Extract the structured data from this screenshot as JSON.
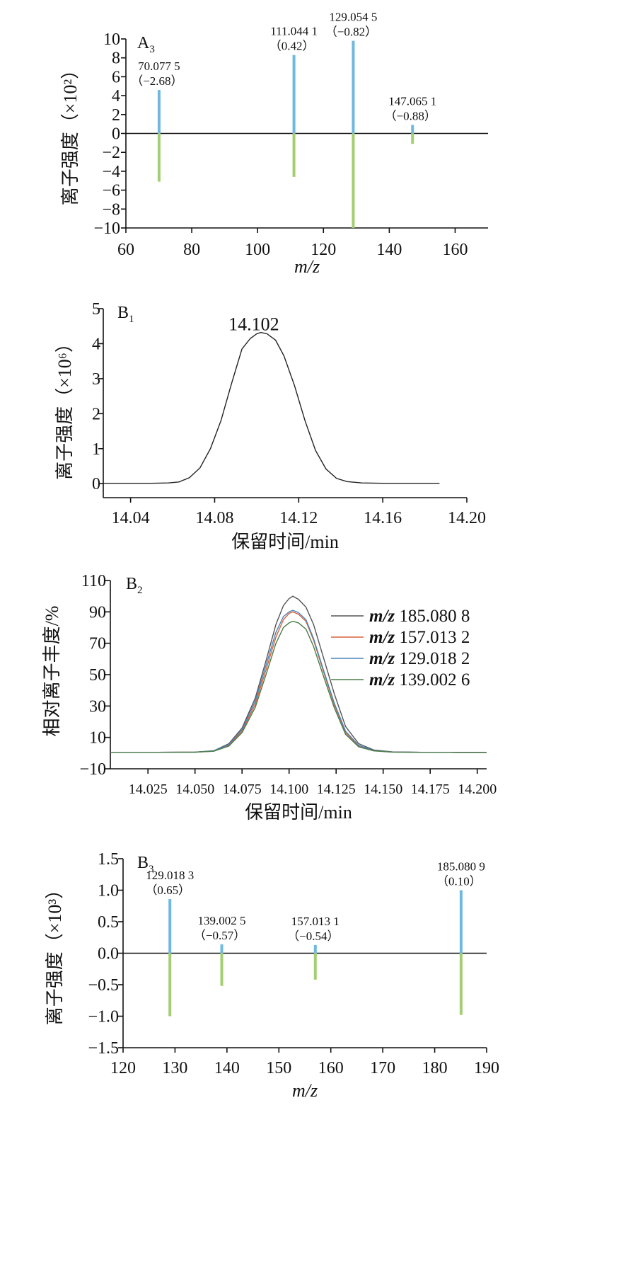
{
  "chart_data": [
    {
      "id": "A3",
      "type": "bar",
      "panel_label": "A",
      "panel_sub": "3",
      "xlabel": "m/z",
      "ylabel": "离子强度（×10²）",
      "xlim": [
        60,
        170
      ],
      "ylim": [
        -10,
        10
      ],
      "xticks": [
        60,
        80,
        100,
        120,
        140,
        160
      ],
      "yticks": [
        {
          "v": -10,
          "t": "−10"
        },
        {
          "v": -8,
          "t": "−8"
        },
        {
          "v": -6,
          "t": "−6"
        },
        {
          "v": -4,
          "t": "−4"
        },
        {
          "v": -2,
          "t": "−2"
        },
        {
          "v": 0,
          "t": "0"
        },
        {
          "v": 2,
          "t": "2"
        },
        {
          "v": 4,
          "t": "4"
        },
        {
          "v": 6,
          "t": "6"
        },
        {
          "v": 8,
          "t": "8"
        },
        {
          "v": 10,
          "t": "10"
        }
      ],
      "colors": {
        "up": "#6fb9e0",
        "down": "#a3cf72"
      },
      "bars": [
        {
          "x": 70.0775,
          "up": 4.6,
          "down": -5.1,
          "label1": "70.077 5",
          "label2": "（−2.68）"
        },
        {
          "x": 111.0441,
          "up": 8.3,
          "down": -4.6,
          "label1": "111.044 1",
          "label2": "（0.42）"
        },
        {
          "x": 129.0545,
          "up": 9.8,
          "down": -10.0,
          "label1": "129.054 5",
          "label2": "（−0.82）"
        },
        {
          "x": 147.0651,
          "up": 0.9,
          "down": -1.1,
          "label1": "147.065 1",
          "label2": "（−0.88）"
        }
      ]
    },
    {
      "id": "B1",
      "type": "line",
      "panel_label": "B",
      "panel_sub": "1",
      "xlabel": "保留时间/min",
      "ylabel": "离子强度（×10⁶）",
      "xlim": [
        14.027,
        14.2
      ],
      "ylim": [
        -0.4,
        5
      ],
      "xticks": [
        {
          "v": 14.04,
          "t": "14.04"
        },
        {
          "v": 14.08,
          "t": "14.08"
        },
        {
          "v": 14.12,
          "t": "14.12"
        },
        {
          "v": 14.16,
          "t": "14.16"
        },
        {
          "v": 14.2,
          "t": "14.20"
        }
      ],
      "yticks": [
        {
          "v": 0,
          "t": "0"
        },
        {
          "v": 1,
          "t": "1"
        },
        {
          "v": 2,
          "t": "2"
        },
        {
          "v": 3,
          "t": "3"
        },
        {
          "v": 4,
          "t": "4"
        },
        {
          "v": 5,
          "t": "5"
        }
      ],
      "peak_label": "14.102",
      "peak_label_at": [
        14.102,
        4.55
      ],
      "series": [
        {
          "color": "#222222",
          "x": [
            14.027,
            14.04,
            14.05,
            14.058,
            14.063,
            14.068,
            14.073,
            14.078,
            14.083,
            14.088,
            14.093,
            14.097,
            14.1,
            14.102,
            14.105,
            14.109,
            14.113,
            14.118,
            14.123,
            14.128,
            14.133,
            14.138,
            14.143,
            14.15,
            14.16,
            14.17,
            14.18,
            14.187
          ],
          "y": [
            0.01,
            0.01,
            0.01,
            0.02,
            0.05,
            0.17,
            0.45,
            1.0,
            1.8,
            2.85,
            3.85,
            4.15,
            4.28,
            4.32,
            4.28,
            4.1,
            3.65,
            2.8,
            1.8,
            0.95,
            0.42,
            0.15,
            0.06,
            0.02,
            0.01,
            0.01,
            0.01,
            0.01
          ]
        }
      ]
    },
    {
      "id": "B2",
      "type": "line",
      "panel_label": "B",
      "panel_sub": "2",
      "xlabel": "保留时间/min",
      "ylabel": "相对离子丰度/%",
      "xlim": [
        14.005,
        14.205
      ],
      "ylim": [
        -10,
        110
      ],
      "xticks": [
        {
          "v": 14.025,
          "t": "14.025"
        },
        {
          "v": 14.05,
          "t": "14.050"
        },
        {
          "v": 14.075,
          "t": "14.075"
        },
        {
          "v": 14.1,
          "t": "14.100"
        },
        {
          "v": 14.125,
          "t": "14.125"
        },
        {
          "v": 14.15,
          "t": "14.150"
        },
        {
          "v": 14.175,
          "t": "14.175"
        },
        {
          "v": 14.2,
          "t": "14.200"
        }
      ],
      "yticks": [
        {
          "v": -10,
          "t": "−10"
        },
        {
          "v": 10,
          "t": "10"
        },
        {
          "v": 30,
          "t": "30"
        },
        {
          "v": 50,
          "t": "50"
        },
        {
          "v": 70,
          "t": "70"
        },
        {
          "v": 90,
          "t": "90"
        },
        {
          "v": 110,
          "t": "110"
        }
      ],
      "x": [
        14.005,
        14.03,
        14.05,
        14.06,
        14.068,
        14.075,
        14.082,
        14.088,
        14.093,
        14.097,
        14.1,
        14.102,
        14.105,
        14.109,
        14.113,
        14.118,
        14.124,
        14.13,
        14.137,
        14.145,
        14.155,
        14.17,
        14.19,
        14.205
      ],
      "series": [
        {
          "name_em": "m/z",
          "name": "185.080 8",
          "color": "#555555",
          "y": [
            0.5,
            0.5,
            0.6,
            1.5,
            6,
            16,
            35,
            60,
            82,
            94,
            98.5,
            100,
            98,
            93,
            82,
            62,
            38,
            17,
            6,
            2,
            0.8,
            0.5,
            0.4,
            0.4
          ]
        },
        {
          "name_em": "m/z",
          "name": "157.013 2",
          "color": "#d9623b",
          "y": [
            0.5,
            0.5,
            0.6,
            1.3,
            5,
            14,
            31,
            54,
            74,
            85,
            89,
            90,
            88.5,
            84,
            72,
            53,
            31,
            13,
            4.5,
            1.5,
            0.7,
            0.5,
            0.4,
            0.4
          ]
        },
        {
          "name_em": "m/z",
          "name": "129.018 2",
          "color": "#4a84b8",
          "y": [
            0.5,
            0.5,
            0.6,
            1.4,
            5.5,
            15,
            33,
            57,
            77,
            87,
            90,
            91,
            89.5,
            85,
            73,
            54,
            32,
            14,
            5,
            1.6,
            0.7,
            0.5,
            0.4,
            0.4
          ]
        },
        {
          "name_em": "m/z",
          "name": "139.002 6",
          "color": "#4b7e4b",
          "y": [
            0.5,
            0.5,
            0.6,
            1.2,
            4.5,
            13,
            29,
            51,
            70,
            80,
            83,
            84,
            83,
            79,
            68,
            50,
            29,
            12,
            4,
            1.4,
            0.6,
            0.5,
            0.4,
            0.4
          ]
        }
      ]
    },
    {
      "id": "B3",
      "type": "bar",
      "panel_label": "B",
      "panel_sub": "3",
      "xlabel": "m/z",
      "ylabel": "离子强度（×10³）",
      "xlim": [
        120,
        190
      ],
      "ylim": [
        -1.5,
        1.5
      ],
      "xticks": [
        120,
        130,
        140,
        150,
        160,
        170,
        180,
        190
      ],
      "yticks": [
        {
          "v": -1.5,
          "t": "−1.5"
        },
        {
          "v": -1.0,
          "t": "−1.0"
        },
        {
          "v": -0.5,
          "t": "−0.5"
        },
        {
          "v": 0,
          "t": "0.0"
        },
        {
          "v": 0.5,
          "t": "0.5"
        },
        {
          "v": 1.0,
          "t": "1.0"
        },
        {
          "v": 1.5,
          "t": "1.5"
        }
      ],
      "colors": {
        "up": "#6fb9e0",
        "down": "#a3cf72"
      },
      "bars": [
        {
          "x": 129.0183,
          "up": 0.86,
          "down": -1.0,
          "label1": "129.018 3",
          "label2": "（0.65）"
        },
        {
          "x": 139.0025,
          "up": 0.14,
          "down": -0.52,
          "label1": "139.002 5",
          "label2": "（−0.57）"
        },
        {
          "x": 157.0131,
          "up": 0.13,
          "down": -0.42,
          "label1": "157.013 1",
          "label2": "（−0.54）"
        },
        {
          "x": 185.0809,
          "up": 1.0,
          "down": -0.98,
          "label1": "185.080 9",
          "label2": "（0.10）"
        }
      ]
    }
  ]
}
